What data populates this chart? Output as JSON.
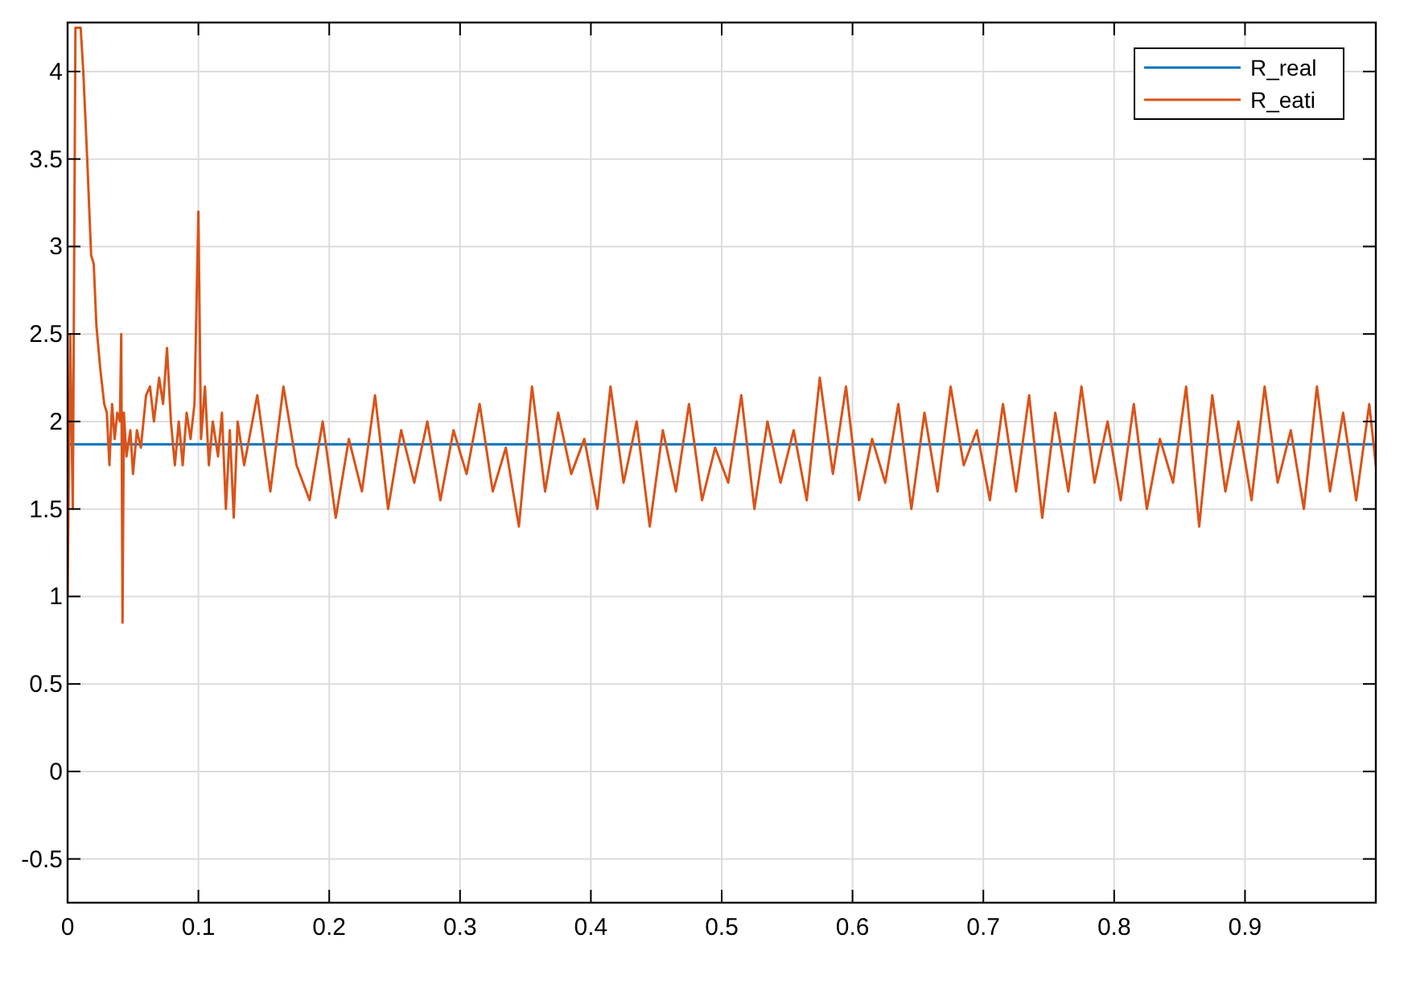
{
  "chart_data": {
    "type": "line",
    "xlim": [
      0,
      1
    ],
    "xticks": [
      0,
      0.1,
      0.2,
      0.3,
      0.4,
      0.5,
      0.6,
      0.7,
      0.8,
      0.9
    ],
    "ylim": [
      -0.75,
      4.28
    ],
    "yticks": [
      -0.5,
      0,
      0.5,
      1,
      1.5,
      2,
      2.5,
      3,
      3.5,
      4
    ],
    "grid": true,
    "legend": "top right",
    "series": [
      {
        "name": "R_real",
        "color": "#0072bd",
        "x": [
          0,
          1
        ],
        "values": [
          1.87,
          1.87
        ]
      },
      {
        "name": "R_eati",
        "color": "#d95319",
        "x": [
          0,
          0.002,
          0.004,
          0.006,
          0.01,
          0.012,
          0.015,
          0.018,
          0.02,
          0.022,
          0.025,
          0.028,
          0.03,
          0.032,
          0.034,
          0.036,
          0.038,
          0.04,
          0.041,
          0.042,
          0.043,
          0.045,
          0.048,
          0.05,
          0.053,
          0.056,
          0.06,
          0.063,
          0.066,
          0.07,
          0.073,
          0.076,
          0.079,
          0.082,
          0.085,
          0.088,
          0.091,
          0.094,
          0.097,
          0.1,
          0.102,
          0.105,
          0.108,
          0.111,
          0.115,
          0.118,
          0.121,
          0.124,
          0.127,
          0.13,
          0.135,
          0.145,
          0.155,
          0.165,
          0.175,
          0.185,
          0.195,
          0.205,
          0.215,
          0.225,
          0.235,
          0.245,
          0.255,
          0.265,
          0.275,
          0.285,
          0.295,
          0.305,
          0.315,
          0.325,
          0.335,
          0.345,
          0.355,
          0.365,
          0.375,
          0.385,
          0.395,
          0.405,
          0.415,
          0.425,
          0.435,
          0.445,
          0.455,
          0.465,
          0.475,
          0.485,
          0.495,
          0.505,
          0.515,
          0.525,
          0.535,
          0.545,
          0.555,
          0.565,
          0.575,
          0.585,
          0.595,
          0.605,
          0.615,
          0.625,
          0.635,
          0.645,
          0.655,
          0.665,
          0.675,
          0.685,
          0.695,
          0.705,
          0.715,
          0.725,
          0.735,
          0.745,
          0.755,
          0.765,
          0.775,
          0.785,
          0.795,
          0.805,
          0.815,
          0.825,
          0.835,
          0.845,
          0.855,
          0.865,
          0.875,
          0.885,
          0.895,
          0.905,
          0.915,
          0.925,
          0.935,
          0.945,
          0.955,
          0.965,
          0.975,
          0.985,
          0.995,
          1.0
        ],
        "values": [
          1.0,
          2.5,
          1.5,
          4.25,
          4.25,
          4.0,
          3.5,
          2.95,
          2.9,
          2.55,
          2.3,
          2.1,
          2.05,
          1.75,
          2.1,
          1.9,
          2.05,
          2.0,
          2.5,
          0.85,
          2.05,
          1.8,
          1.95,
          1.7,
          1.95,
          1.85,
          2.15,
          2.2,
          2.0,
          2.25,
          2.1,
          2.42,
          2.0,
          1.75,
          2.0,
          1.75,
          2.05,
          1.9,
          2.1,
          3.2,
          1.9,
          2.2,
          1.75,
          2.0,
          1.8,
          2.05,
          1.5,
          1.95,
          1.45,
          2.0,
          1.75,
          2.15,
          1.6,
          2.2,
          1.75,
          1.55,
          2.0,
          1.45,
          1.9,
          1.6,
          2.15,
          1.5,
          1.95,
          1.65,
          2.0,
          1.55,
          1.95,
          1.7,
          2.1,
          1.6,
          1.85,
          1.4,
          2.2,
          1.6,
          2.05,
          1.7,
          1.9,
          1.5,
          2.2,
          1.65,
          2.0,
          1.4,
          1.95,
          1.6,
          2.1,
          1.55,
          1.85,
          1.65,
          2.15,
          1.5,
          2.0,
          1.65,
          1.95,
          1.55,
          2.25,
          1.7,
          2.2,
          1.55,
          1.9,
          1.65,
          2.1,
          1.5,
          2.05,
          1.6,
          2.2,
          1.75,
          1.95,
          1.55,
          2.1,
          1.6,
          2.15,
          1.45,
          2.05,
          1.6,
          2.2,
          1.65,
          2.0,
          1.55,
          2.1,
          1.5,
          1.9,
          1.65,
          2.2,
          1.4,
          2.15,
          1.6,
          2.0,
          1.55,
          2.2,
          1.65,
          1.95,
          1.5,
          2.2,
          1.6,
          2.05,
          1.55,
          2.1,
          1.75
        ]
      }
    ]
  }
}
